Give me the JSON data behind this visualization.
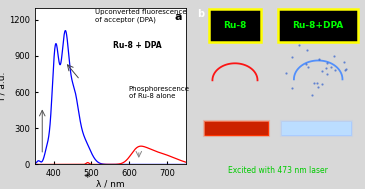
{
  "panel_a_label": "a",
  "panel_b_label": "b",
  "ylabel": "I / a.u.",
  "xlabel": "λ / nm",
  "ylim": [
    0,
    1300
  ],
  "xlim": [
    350,
    750
  ],
  "yticks": [
    0,
    300,
    600,
    900,
    1200
  ],
  "xticks": [
    400,
    500,
    600,
    700
  ],
  "annotation1_line1": "Upconverted fluorescence",
  "annotation1_line2": "of acceptor (DPA)",
  "annotation2_line1": "Phosphorescence",
  "annotation2_line2": "of Ru-8 alone",
  "blue_label": "Ru-8 + DPA",
  "label_ru8": "Ru-8",
  "label_ru8dpa": "Ru-8+DPA",
  "bottom_text": "Excited with 473 nm laser",
  "label_color": "#00ff00",
  "box_edge_color": "#ffff00",
  "right_bg": "#000000",
  "fig_bg": "#d8d8d8"
}
